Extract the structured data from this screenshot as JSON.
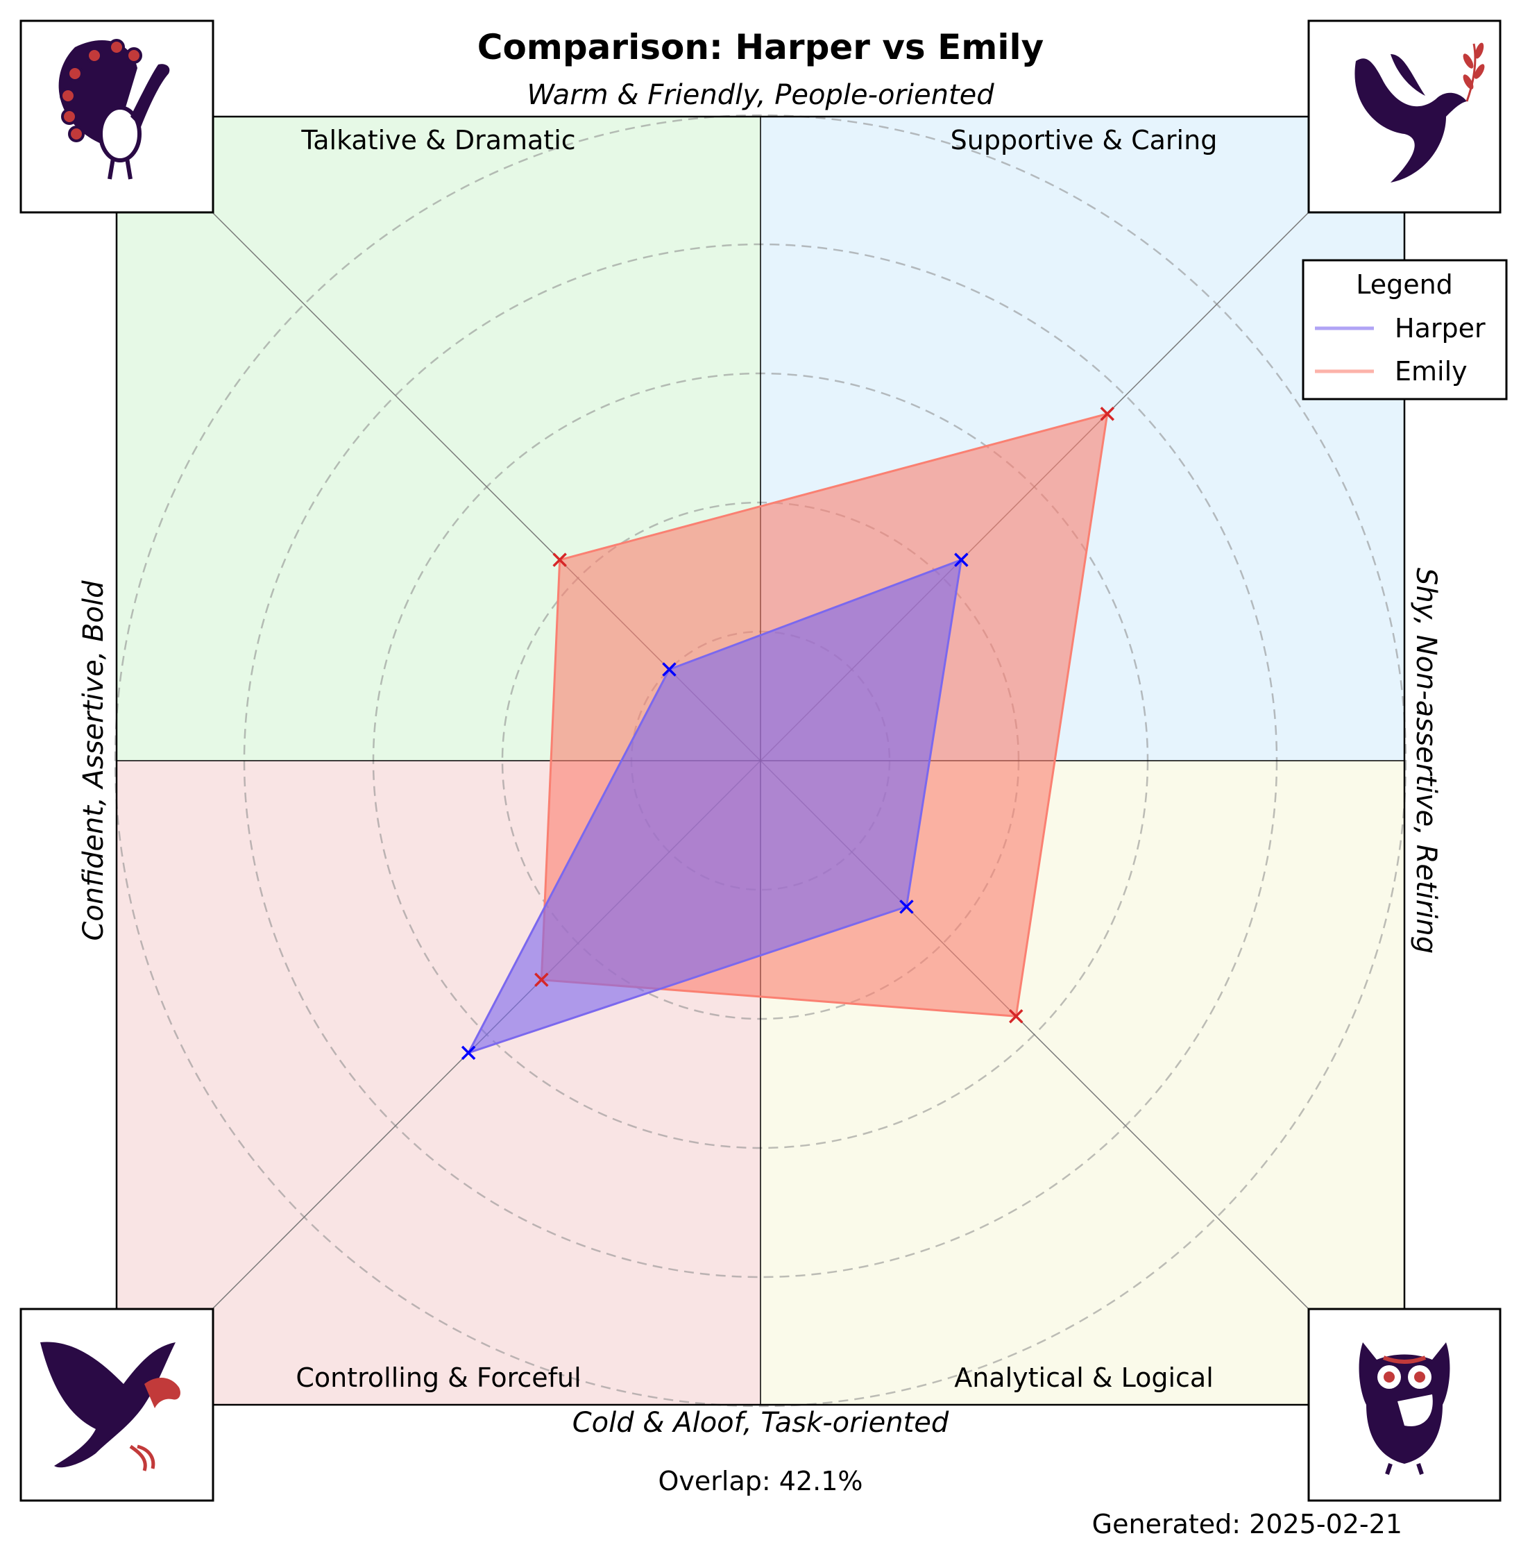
{
  "chart_data": {
    "type": "radar",
    "title": "Comparison: Harper vs Emily",
    "axis_labels": {
      "top": "Warm & Friendly, People-oriented",
      "bottom": "Cold & Aloof, Task-oriented",
      "left": "Confident, Assertive, Bold",
      "right": "Shy, Non-assertive, Retiring"
    },
    "quadrants": [
      {
        "position": "top-left",
        "label": "Talkative & Dramatic",
        "color": "#e6f9e6",
        "icon": "peacock-icon"
      },
      {
        "position": "top-right",
        "label": "Supportive & Caring",
        "color": "#e6f4fd",
        "icon": "dove-icon"
      },
      {
        "position": "bottom-left",
        "label": "Controlling & Forceful",
        "color": "#f9e4e4",
        "icon": "eagle-icon"
      },
      {
        "position": "bottom-right",
        "label": "Analytical & Logical",
        "color": "#fafaea",
        "icon": "owl-icon"
      }
    ],
    "axes_order": [
      "Talkative & Dramatic",
      "Supportive & Caring",
      "Analytical & Logical",
      "Controlling & Forceful"
    ],
    "rmax": 5,
    "ring_values": [
      1,
      2,
      3,
      4,
      5
    ],
    "grid": true,
    "legend": {
      "title": "Legend",
      "placement": "top-right"
    },
    "series": [
      {
        "name": "Harper",
        "color": "#7b68ee",
        "marker_color": "#0000ff",
        "values": [
          1.0,
          2.2,
          1.6,
          3.2
        ]
      },
      {
        "name": "Emily",
        "color": "#fa8072",
        "marker_color": "#d62728",
        "values": [
          2.2,
          3.8,
          2.8,
          2.4
        ]
      }
    ],
    "overlap_text": "Overlap: 42.1%",
    "generated_text": "Generated: 2025-02-21"
  }
}
